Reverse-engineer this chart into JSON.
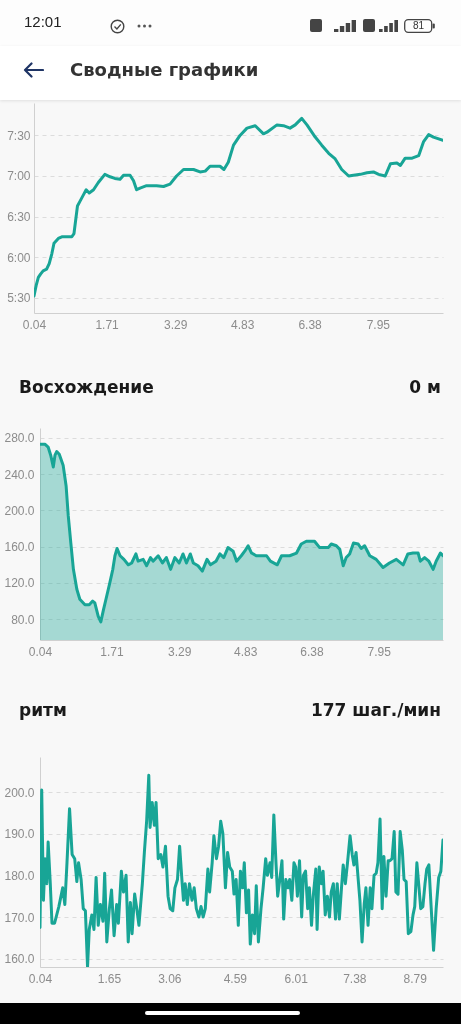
{
  "chart_data": [
    {
      "type": "line",
      "title": "Сводные графики",
      "annotations": [
        "12:01",
        "81"
      ],
      "color": "#18a596",
      "xlim": [
        0.04,
        9.45
      ],
      "xticks": [
        0.04,
        1.71,
        3.29,
        4.83,
        6.38,
        7.95
      ],
      "ylim": [
        5.31,
        7.9
      ],
      "yticks": [
        {
          "value": 5.5,
          "label": "5:30"
        },
        {
          "value": 6,
          "label": "6:00"
        },
        {
          "value": 6.5,
          "label": "6:30"
        },
        {
          "value": 7,
          "label": "7:00"
        },
        {
          "value": 7.5,
          "label": "7:30"
        }
      ],
      "grid": "y",
      "x": [
        0.04,
        0.09,
        0.14,
        0.19,
        0.25,
        0.33,
        0.39,
        0.45,
        0.5,
        0.6,
        0.68,
        0.91,
        0.96,
        1.04,
        1.1,
        1.18,
        1.24,
        1.31,
        1.41,
        1.52,
        1.67,
        1.79,
        1.9,
        2.02,
        2.1,
        2.25,
        2.33,
        2.4,
        2.48,
        2.63,
        2.86,
        3.02,
        3.17,
        3.32,
        3.48,
        3.71,
        3.86,
        3.98,
        4.09,
        4.32,
        4.41,
        4.51,
        4.63,
        4.78,
        4.94,
        5.13,
        5.32,
        5.4,
        5.63,
        5.78,
        5.93,
        6.05,
        6.2,
        6.32,
        6.51,
        6.66,
        6.82,
        6.97,
        7.12,
        7.28,
        7.39,
        7.55,
        7.7,
        7.85,
        7.97,
        8.12,
        8.24,
        8.39,
        8.47,
        8.58,
        8.74,
        8.89,
        9.0,
        9.12,
        9.23,
        9.45
      ],
      "values": [
        5.52,
        5.65,
        5.75,
        5.79,
        5.83,
        5.85,
        5.92,
        6.04,
        6.17,
        6.23,
        6.25,
        6.25,
        6.29,
        6.63,
        6.69,
        6.77,
        6.83,
        6.79,
        6.83,
        6.92,
        7.02,
        6.99,
        6.97,
        6.96,
        7.01,
        7.01,
        6.94,
        6.83,
        6.85,
        6.88,
        6.88,
        6.87,
        6.9,
        7.0,
        7.08,
        7.08,
        7.05,
        7.06,
        7.12,
        7.12,
        7.08,
        7.17,
        7.38,
        7.5,
        7.59,
        7.62,
        7.52,
        7.54,
        7.63,
        7.62,
        7.59,
        7.63,
        7.71,
        7.63,
        7.48,
        7.38,
        7.28,
        7.21,
        7.08,
        7.0,
        7.01,
        7.02,
        7.04,
        7.05,
        7.02,
        7.0,
        7.15,
        7.16,
        7.13,
        7.22,
        7.22,
        7.25,
        7.42,
        7.51,
        7.48,
        7.44
      ]
    },
    {
      "type": "area",
      "title": "Восхождение",
      "subtitle": "0 м",
      "color": "#18a596",
      "xlim": [
        0.04,
        9.45
      ],
      "xticks": [
        0.04,
        1.71,
        3.29,
        4.83,
        6.38,
        7.95
      ],
      "ylim": [
        57,
        291
      ],
      "yticks": [
        {
          "value": 80,
          "label": "80.0"
        },
        {
          "value": 120,
          "label": "120.0"
        },
        {
          "value": 160,
          "label": "160.0"
        },
        {
          "value": 200,
          "label": "200.0"
        },
        {
          "value": 240,
          "label": "240.0"
        },
        {
          "value": 280,
          "label": "280.0"
        }
      ],
      "grid": "y",
      "x": [
        0.04,
        0.16,
        0.23,
        0.29,
        0.35,
        0.39,
        0.43,
        0.49,
        0.58,
        0.65,
        0.7,
        0.76,
        0.82,
        0.9,
        0.97,
        1.09,
        1.19,
        1.27,
        1.32,
        1.4,
        1.46,
        1.52,
        1.58,
        1.67,
        1.74,
        1.79,
        1.84,
        1.91,
        2.0,
        2.1,
        2.18,
        2.28,
        2.33,
        2.45,
        2.53,
        2.62,
        2.68,
        2.8,
        2.9,
        2.99,
        3.09,
        3.19,
        3.29,
        3.38,
        3.46,
        3.55,
        3.62,
        3.73,
        3.83,
        3.94,
        4.02,
        4.15,
        4.24,
        4.33,
        4.43,
        4.55,
        4.63,
        4.74,
        4.82,
        4.9,
        4.98,
        5.09,
        5.33,
        5.42,
        5.58,
        5.68,
        5.87,
        6.03,
        6.14,
        6.26,
        6.45,
        6.57,
        6.77,
        6.84,
        6.96,
        7.04,
        7.12,
        7.19,
        7.27,
        7.36,
        7.47,
        7.54,
        7.62,
        7.74,
        7.89,
        8.05,
        8.2,
        8.36,
        8.52,
        8.63,
        8.75,
        8.87,
        8.92,
        9.02,
        9.12,
        9.22,
        9.29,
        9.39,
        9.45
      ],
      "values": [
        273,
        273,
        270,
        261,
        248,
        261,
        265,
        262,
        250,
        227,
        194,
        164,
        135,
        113,
        102,
        96,
        96,
        100,
        98,
        83,
        77,
        90,
        102,
        120,
        135,
        150,
        158,
        150,
        146,
        140,
        142,
        152,
        144,
        146,
        139,
        148,
        144,
        150,
        142,
        148,
        135,
        148,
        142,
        152,
        142,
        152,
        142,
        139,
        133,
        146,
        140,
        144,
        152,
        148,
        159,
        155,
        144,
        150,
        155,
        161,
        153,
        150,
        150,
        144,
        140,
        150,
        150,
        153,
        163,
        166,
        166,
        159,
        159,
        163,
        161,
        157,
        139,
        148,
        152,
        164,
        163,
        158,
        161,
        150,
        146,
        137,
        142,
        146,
        140,
        152,
        153,
        153,
        144,
        148,
        144,
        135,
        144,
        153,
        150
      ]
    },
    {
      "type": "line",
      "title": "ритм",
      "subtitle": "177 шаг./мин",
      "color": "#18a596",
      "xlim": [
        0.04,
        9.45
      ],
      "xticks": [
        0.04,
        1.65,
        3.06,
        4.59,
        6.01,
        7.38,
        8.79
      ],
      "ylim": [
        158,
        208.4
      ],
      "yticks": [
        {
          "value": 160,
          "label": "160.0"
        },
        {
          "value": 170,
          "label": "170.0"
        },
        {
          "value": 180,
          "label": "180.0"
        },
        {
          "value": 190,
          "label": "190.0"
        },
        {
          "value": 200,
          "label": "200.0"
        }
      ],
      "grid": "y",
      "x": [
        0.04,
        0.08,
        0.12,
        0.16,
        0.2,
        0.23,
        0.28,
        0.32,
        0.38,
        0.48,
        0.57,
        0.62,
        0.67,
        0.73,
        0.79,
        0.85,
        0.9,
        0.94,
        1.0,
        1.05,
        1.1,
        1.15,
        1.19,
        1.25,
        1.3,
        1.35,
        1.4,
        1.45,
        1.51,
        1.55,
        1.6,
        1.66,
        1.71,
        1.77,
        1.83,
        1.87,
        1.94,
        1.99,
        2.05,
        2.1,
        2.15,
        2.19,
        2.25,
        2.3,
        2.35,
        2.43,
        2.48,
        2.53,
        2.58,
        2.61,
        2.66,
        2.71,
        2.75,
        2.8,
        2.86,
        2.91,
        2.97,
        3.03,
        3.08,
        3.14,
        3.19,
        3.25,
        3.3,
        3.36,
        3.39,
        3.43,
        3.48,
        3.53,
        3.59,
        3.64,
        3.69,
        3.75,
        3.8,
        3.85,
        3.9,
        3.96,
        4.0,
        4.06,
        4.1,
        4.16,
        4.21,
        4.26,
        4.31,
        4.37,
        4.42,
        4.47,
        4.53,
        4.57,
        4.62,
        4.67,
        4.72,
        4.77,
        4.81,
        4.86,
        4.91,
        4.95,
        5.0,
        5.05,
        5.09,
        5.14,
        5.2,
        5.25,
        5.31,
        5.35,
        5.41,
        5.45,
        5.5,
        5.55,
        5.59,
        5.64,
        5.69,
        5.73,
        5.78,
        5.83,
        5.87,
        5.92,
        5.97,
        6.01,
        6.05,
        6.1,
        6.15,
        6.19,
        6.24,
        6.29,
        6.33,
        6.38,
        6.42,
        6.48,
        6.51,
        6.56,
        6.61,
        6.65,
        6.7,
        6.75,
        6.8,
        6.84,
        6.89,
        6.94,
        6.98,
        7.03,
        7.08,
        7.12,
        7.17,
        7.22,
        7.28,
        7.33,
        7.37,
        7.42,
        7.47,
        7.51,
        7.56,
        7.61,
        7.65,
        7.7,
        7.75,
        7.79,
        7.84,
        7.89,
        7.93,
        7.98,
        8.03,
        8.07,
        8.12,
        8.17,
        8.21,
        8.26,
        8.31,
        8.35,
        8.4,
        8.45,
        8.5,
        8.54,
        8.59,
        8.64,
        8.7,
        8.75,
        8.79,
        8.84,
        8.89,
        8.93,
        8.98,
        9.03,
        9.07,
        9.12,
        9.17,
        9.23,
        9.29,
        9.35,
        9.4,
        9.45
      ],
      "values": [
        167.5,
        200.5,
        174,
        184,
        178,
        188,
        178,
        168.5,
        168.5,
        172.5,
        177,
        173,
        183,
        196,
        185,
        184,
        178.5,
        183,
        179,
        172,
        171.5,
        158,
        167,
        170.5,
        167,
        179.5,
        168,
        173,
        169,
        180.5,
        164,
        172,
        176.5,
        165.5,
        173,
        168.5,
        181,
        176,
        180,
        164,
        173.5,
        166,
        175.5,
        172,
        168,
        178,
        186,
        193,
        204,
        191.5,
        197.5,
        192,
        197.5,
        184,
        185,
        182,
        187,
        175,
        172,
        171.5,
        177,
        179,
        187,
        178,
        174,
        178,
        173,
        178,
        174,
        177,
        172,
        170,
        172.5,
        170,
        172,
        181.5,
        176,
        183,
        189.5,
        184,
        187,
        193,
        190,
        177,
        185.5,
        182,
        181,
        175.5,
        179,
        168,
        181,
        177,
        183,
        171,
        176.5,
        163.5,
        170.5,
        166,
        177.5,
        164,
        172,
        177,
        184,
        180,
        183,
        179.5,
        194.5,
        183,
        175,
        179,
        183.5,
        169.5,
        179,
        177,
        179,
        174,
        183,
        182,
        175,
        183.5,
        170,
        180,
        181,
        172,
        177,
        168,
        175,
        181.5,
        167,
        182,
        178,
        181,
        170.5,
        175,
        170,
        176,
        178,
        169.5,
        178,
        169.5,
        177,
        182.5,
        178,
        183,
        189.5,
        185,
        182.5,
        185.5,
        179,
        174,
        164,
        173,
        177,
        168,
        177,
        172,
        180,
        180.5,
        183,
        193.5,
        172,
        184.5,
        175,
        183.5,
        183.5,
        184,
        190.5,
        176,
        175.5,
        190.5,
        186,
        179,
        178.5,
        166,
        166.5,
        170.5,
        172.5,
        183,
        177,
        172,
        172.5,
        178,
        181.5,
        182.5,
        173,
        162,
        172,
        179.5,
        181,
        188.5
      ]
    }
  ]
}
